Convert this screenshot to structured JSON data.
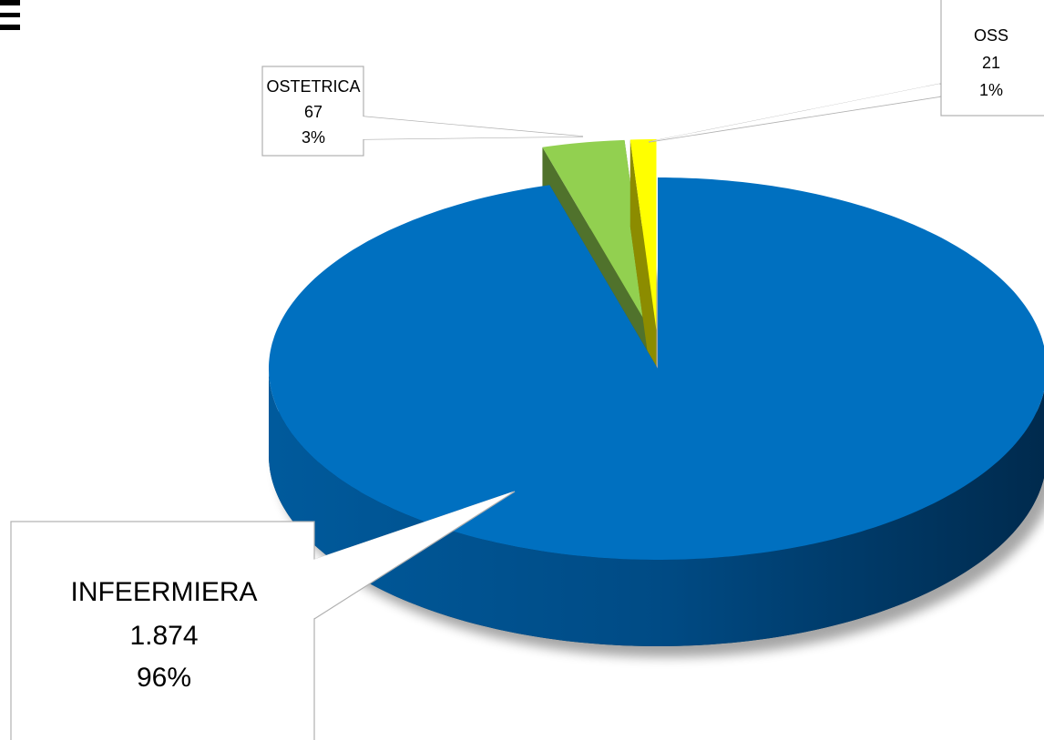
{
  "chart_data": {
    "type": "pie3d",
    "categories": [
      "INFEERMIERA",
      "OSTETRICA",
      "OSS"
    ],
    "values": [
      1874,
      67,
      21
    ],
    "value_labels": [
      "1.874",
      "67",
      "21"
    ],
    "percentages": [
      96,
      3,
      1
    ],
    "percent_labels": [
      "96%",
      "3%",
      "1%"
    ],
    "colors": [
      "#0070c0",
      "#92d050",
      "#ffff00"
    ]
  }
}
